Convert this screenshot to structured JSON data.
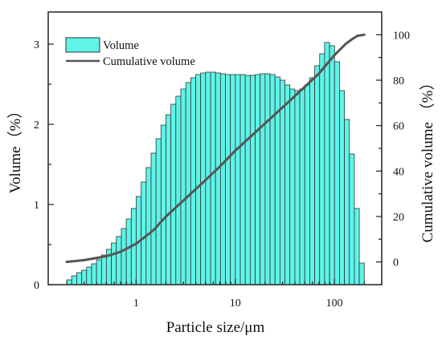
{
  "chart_data": {
    "type": "bar",
    "xlabel": "Particle size/μm",
    "ylabel": "Volume（%）",
    "y2label": "Cumulative volume （%）",
    "xscale": "log",
    "xlim": [
      0.13,
      300
    ],
    "ylim": [
      0,
      3.4
    ],
    "y2lim": [
      -10,
      110
    ],
    "x_ticks": [
      1,
      10,
      100
    ],
    "x_tick_labels": [
      "1",
      "10",
      "100"
    ],
    "y_ticks": [
      0,
      1,
      2,
      3
    ],
    "y_tick_labels": [
      "0",
      "1",
      "2",
      "3"
    ],
    "y2_ticks": [
      0,
      20,
      40,
      60,
      80,
      100
    ],
    "y2_tick_labels": [
      "0",
      "20",
      "40",
      "60",
      "80",
      "100"
    ],
    "legend_position": "top-left",
    "grid": false,
    "bin_edges": [
      0.2,
      0.224,
      0.252,
      0.283,
      0.317,
      0.356,
      0.399,
      0.448,
      0.502,
      0.564,
      0.632,
      0.71,
      0.796,
      0.893,
      1.002,
      1.125,
      1.262,
      1.416,
      1.589,
      1.783,
      2.0,
      2.244,
      2.518,
      2.825,
      3.17,
      3.557,
      3.991,
      4.477,
      5.024,
      5.637,
      6.325,
      7.096,
      7.962,
      8.934,
      10.024,
      11.247,
      12.619,
      14.159,
      15.887,
      17.825,
      20.0,
      22.44,
      25.179,
      28.251,
      31.698,
      35.566,
      39.905,
      44.774,
      50.237,
      56.367,
      63.245,
      70.962,
      79.621,
      89.336,
      100.237,
      112.468,
      126.191,
      141.589,
      158.866,
      178.25,
      200.0
    ],
    "series": [
      {
        "name": "Volume",
        "type": "bar",
        "color": "#5ef4e8",
        "edge_color": "#333333",
        "values": [
          0.06,
          0.11,
          0.15,
          0.18,
          0.22,
          0.26,
          0.31,
          0.37,
          0.44,
          0.52,
          0.6,
          0.7,
          0.82,
          0.95,
          1.1,
          1.28,
          1.46,
          1.64,
          1.82,
          1.99,
          2.12,
          2.25,
          2.35,
          2.44,
          2.52,
          2.58,
          2.62,
          2.64,
          2.65,
          2.65,
          2.64,
          2.63,
          2.62,
          2.62,
          2.62,
          2.62,
          2.61,
          2.61,
          2.62,
          2.63,
          2.63,
          2.62,
          2.59,
          2.55,
          2.49,
          2.44,
          2.42,
          2.44,
          2.49,
          2.58,
          2.73,
          2.88,
          3.02,
          2.98,
          2.78,
          2.42,
          2.06,
          1.63,
          0.95,
          0.27
        ]
      },
      {
        "name": "Cumulative volume",
        "type": "line",
        "axis": "right",
        "color": "#555555",
        "x": [
          0.2,
          0.3,
          0.5,
          0.7,
          1,
          1.5,
          2,
          3,
          5,
          7,
          10,
          15,
          20,
          30,
          50,
          70,
          100,
          130,
          150,
          170,
          200
        ],
        "values": [
          0,
          0.8,
          2.5,
          4.5,
          8,
          14,
          20,
          27,
          36,
          42,
          49,
          56,
          61,
          68,
          77,
          83,
          91,
          96,
          98,
          99.5,
          100
        ]
      }
    ]
  }
}
